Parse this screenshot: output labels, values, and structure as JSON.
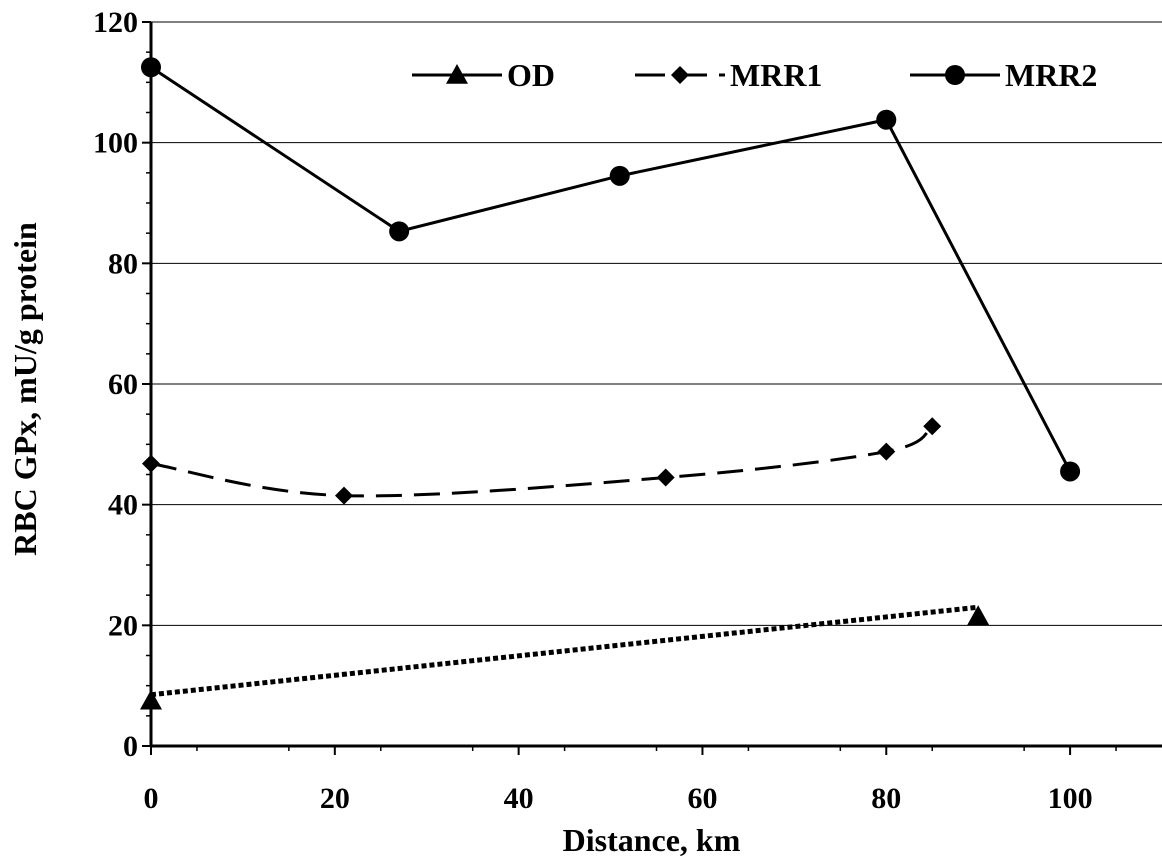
{
  "chart_data": {
    "type": "line",
    "title": "",
    "xlabel": "Distance, km",
    "ylabel": "RBC GPx, mU/g protein",
    "xlim": [
      0,
      110
    ],
    "ylim": [
      0,
      120
    ],
    "x_ticks": [
      0,
      20,
      40,
      60,
      80,
      100
    ],
    "y_ticks": [
      0,
      20,
      40,
      60,
      80,
      100,
      120
    ],
    "grid": "horizontal",
    "legend_position": "top-right",
    "series": [
      {
        "name": "OD",
        "marker": "triangle",
        "line_style": "none",
        "x": [
          0,
          90
        ],
        "y": [
          7.5,
          21.5
        ],
        "trendline": {
          "style": "dotted",
          "x": [
            0,
            90
          ],
          "y": [
            8.5,
            23
          ]
        }
      },
      {
        "name": "MRR1",
        "marker": "diamond",
        "line_style": "dashed",
        "x": [
          0,
          21,
          56,
          80,
          85
        ],
        "y": [
          46.8,
          41.5,
          44.5,
          48.8,
          53
        ]
      },
      {
        "name": "MRR2",
        "marker": "circle",
        "line_style": "solid",
        "x": [
          0,
          27,
          51,
          80,
          100
        ],
        "y": [
          112.5,
          85.3,
          94.5,
          103.8,
          45.5
        ]
      }
    ],
    "colors": {
      "line": "#000000",
      "grid": "#000000",
      "background": "#ffffff"
    }
  }
}
